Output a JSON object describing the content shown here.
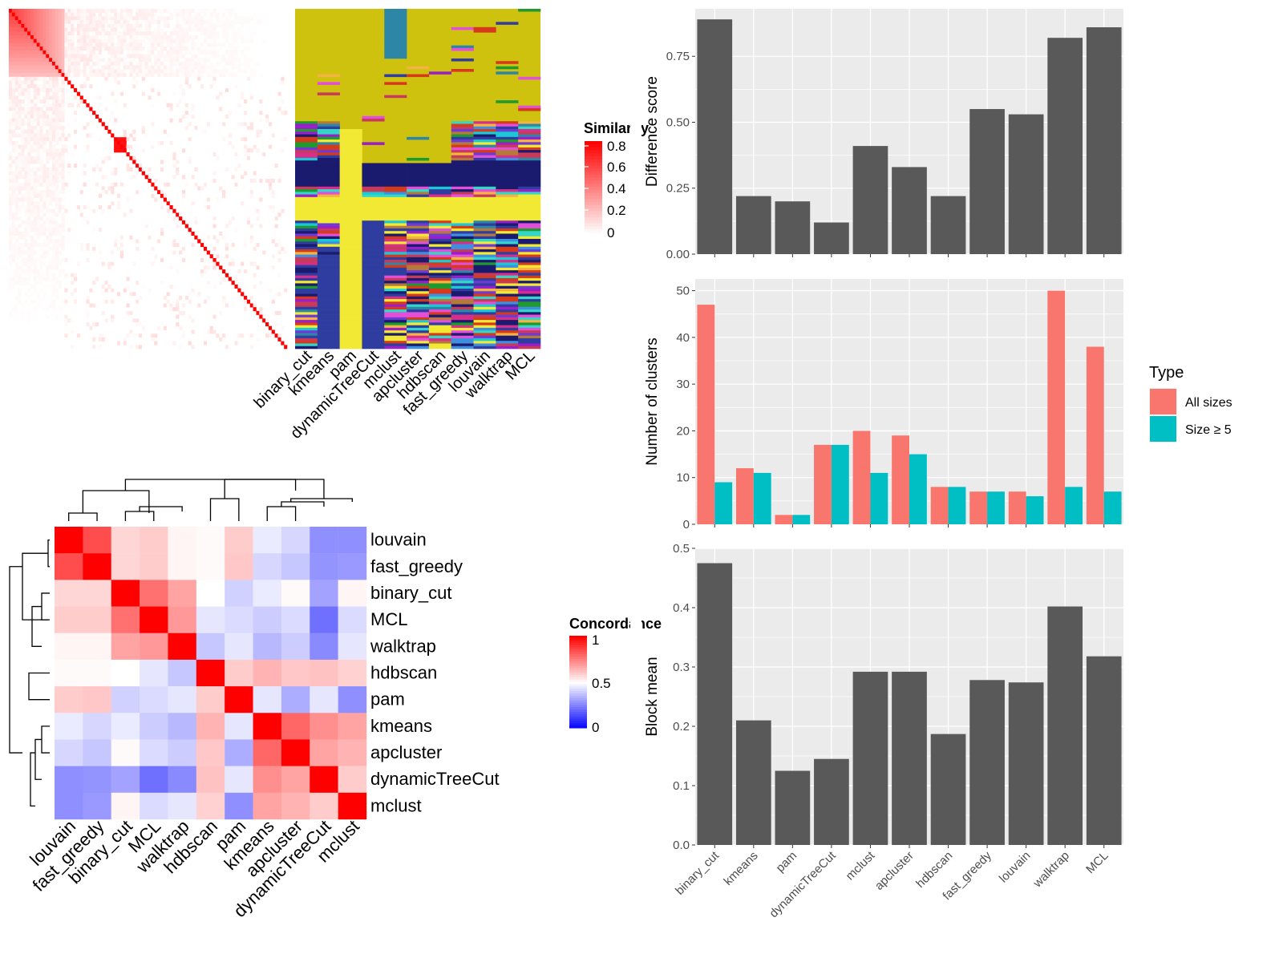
{
  "methods_order": [
    "binary_cut",
    "kmeans",
    "pam",
    "dynamicTreeCut",
    "mclust",
    "apcluster",
    "hdbscan",
    "fast_greedy",
    "louvain",
    "walktrap",
    "MCL"
  ],
  "similarity_legend": {
    "title": "Similarity",
    "ticks": [
      "0.8",
      "0.6",
      "0.4",
      "0.2",
      "0"
    ]
  },
  "concordance_legend": {
    "title": "Concordance",
    "ticks": [
      "1",
      "0.5",
      "0"
    ]
  },
  "type_legend": {
    "title": "Type",
    "items": [
      "All sizes",
      "Size ≥ 5"
    ]
  },
  "colors": {
    "all_sizes": "#F8766D",
    "size_ge5": "#00BFC4",
    "bar": "#595959",
    "panel": "#EBEBEB",
    "partition_bg": "#CFC20F"
  },
  "chart_data": [
    {
      "type": "heatmap",
      "name": "similarity_matrix",
      "legend_title": "Similarity",
      "color_range": [
        0,
        0.8
      ]
    },
    {
      "type": "heatmap",
      "name": "cluster_partitions",
      "columns": [
        "binary_cut",
        "kmeans",
        "pam",
        "dynamicTreeCut",
        "mclust",
        "apcluster",
        "hdbscan",
        "fast_greedy",
        "louvain",
        "walktrap",
        "MCL"
      ]
    },
    {
      "type": "heatmap",
      "name": "concordance",
      "legend_title": "Concordance",
      "labels": [
        "louvain",
        "fast_greedy",
        "binary_cut",
        "MCL",
        "walktrap",
        "hdbscan",
        "pam",
        "kmeans",
        "apcluster",
        "dynamicTreeCut",
        "mclust"
      ],
      "values": [
        [
          1.0,
          0.85,
          0.58,
          0.6,
          0.52,
          0.51,
          0.6,
          0.46,
          0.42,
          0.28,
          0.28
        ],
        [
          0.85,
          1.0,
          0.58,
          0.6,
          0.52,
          0.51,
          0.61,
          0.42,
          0.39,
          0.29,
          0.3
        ],
        [
          0.58,
          0.58,
          1.0,
          0.78,
          0.68,
          0.5,
          0.41,
          0.46,
          0.51,
          0.32,
          0.52
        ],
        [
          0.6,
          0.6,
          0.78,
          1.0,
          0.7,
          0.45,
          0.43,
          0.4,
          0.43,
          0.22,
          0.43
        ],
        [
          0.52,
          0.52,
          0.68,
          0.7,
          1.0,
          0.39,
          0.45,
          0.36,
          0.4,
          0.27,
          0.45
        ],
        [
          0.51,
          0.51,
          0.5,
          0.45,
          0.39,
          1.0,
          0.6,
          0.65,
          0.61,
          0.62,
          0.59
        ],
        [
          0.6,
          0.61,
          0.41,
          0.43,
          0.45,
          0.6,
          1.0,
          0.45,
          0.34,
          0.45,
          0.28
        ],
        [
          0.46,
          0.42,
          0.46,
          0.4,
          0.36,
          0.65,
          0.45,
          1.0,
          0.8,
          0.72,
          0.68
        ],
        [
          0.42,
          0.39,
          0.51,
          0.43,
          0.4,
          0.61,
          0.34,
          0.8,
          1.0,
          0.68,
          0.65
        ],
        [
          0.28,
          0.29,
          0.32,
          0.22,
          0.27,
          0.62,
          0.45,
          0.72,
          0.68,
          1.0,
          0.6
        ],
        [
          0.28,
          0.3,
          0.52,
          0.43,
          0.45,
          0.59,
          0.28,
          0.68,
          0.65,
          0.6,
          1.0
        ]
      ],
      "color_range": [
        0,
        1
      ]
    },
    {
      "type": "bar",
      "name": "difference_score",
      "categories": [
        "binary_cut",
        "kmeans",
        "pam",
        "dynamicTreeCut",
        "mclust",
        "apcluster",
        "hdbscan",
        "fast_greedy",
        "louvain",
        "walktrap",
        "MCL"
      ],
      "values": [
        0.89,
        0.22,
        0.2,
        0.12,
        0.41,
        0.33,
        0.22,
        0.55,
        0.53,
        0.82,
        0.86
      ],
      "ylabel": "Difference score",
      "ylim": [
        0,
        0.93
      ],
      "yticks": [
        "0.00",
        "0.25",
        "0.50",
        "0.75"
      ],
      "grid": true
    },
    {
      "type": "bar",
      "name": "number_of_clusters",
      "categories": [
        "binary_cut",
        "kmeans",
        "pam",
        "dynamicTreeCut",
        "mclust",
        "apcluster",
        "hdbscan",
        "fast_greedy",
        "louvain",
        "walktrap",
        "MCL"
      ],
      "series": [
        {
          "name": "All sizes",
          "values": [
            47,
            12,
            2,
            17,
            20,
            19,
            8,
            7,
            7,
            50,
            38
          ]
        },
        {
          "name": "Size ≥ 5",
          "values": [
            9,
            11,
            2,
            17,
            11,
            15,
            8,
            7,
            6,
            8,
            7
          ]
        }
      ],
      "ylabel": "Number of clusters",
      "ylim": [
        0,
        52.5
      ],
      "yticks": [
        "0",
        "10",
        "20",
        "30",
        "40",
        "50"
      ],
      "legend": "right",
      "grid": true
    },
    {
      "type": "bar",
      "name": "block_mean",
      "categories": [
        "binary_cut",
        "kmeans",
        "pam",
        "dynamicTreeCut",
        "mclust",
        "apcluster",
        "hdbscan",
        "fast_greedy",
        "louvain",
        "walktrap",
        "MCL"
      ],
      "values": [
        0.475,
        0.21,
        0.125,
        0.145,
        0.292,
        0.292,
        0.187,
        0.278,
        0.274,
        0.402,
        0.318
      ],
      "ylabel": "Block mean",
      "ylim": [
        0,
        0.5
      ],
      "yticks": [
        "0.0",
        "0.1",
        "0.2",
        "0.3",
        "0.4",
        "0.5"
      ],
      "grid": true
    }
  ]
}
